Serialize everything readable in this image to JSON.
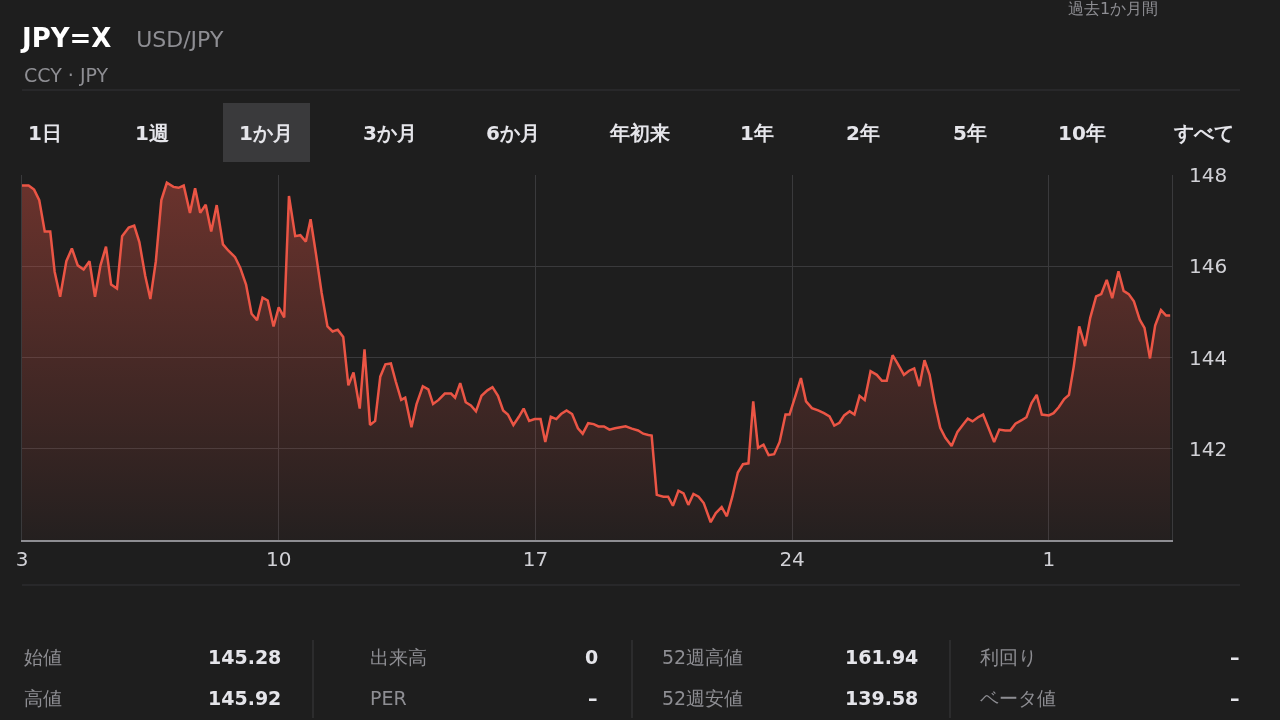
{
  "chart_data": {
    "type": "area",
    "title": "JPY=X",
    "subtitle": "USD/JPY",
    "annotations": [
      "CCY · JPY",
      "過去1か月間",
      "1日",
      "1週",
      "1か月",
      "3か月",
      "6か月",
      "年初来",
      "1年",
      "2年",
      "5年",
      "10年",
      "すべて",
      "始値",
      "145.28",
      "出来高",
      "0",
      "52週高値",
      "161.94",
      "利回り",
      "–",
      "高値",
      "145.92",
      "PER",
      "–",
      "52週安値",
      "139.58",
      "ベータ値",
      "–"
    ],
    "x": [
      "--04-03T00:00",
      "--04-03T04:19",
      "--04-03T07:55",
      "--04-03T11:17",
      "--04-03T14:53",
      "--04-03T18:29",
      "--04-03T21:22",
      "--04-04T00:58",
      "--04-04T05:02",
      "--04-04T08:38",
      "--04-04T12:29",
      "--04-04T16:19",
      "--04-04T20:10",
      "--04-04T23:46",
      "--04-05T03:22",
      "--04-05T06:58",
      "--04-05T10:19",
      "--04-05T14:10",
      "--04-05T17:31",
      "--04-05T21:50",
      "--04-06T01:26",
      "--04-06T04:48",
      "--04-06T08:38",
      "--04-06T12:00",
      "--04-06T15:36",
      "--04-06T19:12",
      "--04-06T22:48",
      "--04-07T03:07",
      "--04-07T06:29",
      "--04-07T09:50",
      "--04-07T13:55",
      "--04-07T17:17",
      "--04-07T20:38",
      "--04-08T00:14",
      "--04-08T03:50",
      "--04-08T07:26",
      "--04-08T11:31",
      "--04-08T15:07",
      "--04-08T19:26",
      "--04-08T22:48",
      "--04-09T02:38",
      "--04-09T06:14",
      "--04-09T09:50",
      "--04-09T13:26",
      "--04-09T16:48",
      "--04-09T20:38",
      "--04-10T00:00",
      "--04-10T03:36",
      "--04-10T06:43",
      "--04-10T10:48",
      "--04-10T14:10",
      "--04-10T17:46",
      "--04-10T20:53",
      "--04-11T00:29",
      "--04-11T04:05",
      "--04-11T07:55",
      "--04-11T11:17",
      "--04-11T14:38",
      "--04-11T18:14",
      "--04-11T21:36",
      "--04-12T00:58",
      "--04-12T05:02",
      "--04-12T08:10",
      "--04-12T11:46",
      "--04-12T15:07",
      "--04-12T18:29",
      "--04-12T21:50",
      "--04-13T01:26",
      "--04-13T04:34",
      "--04-13T08:10",
      "--04-13T10:48",
      "--04-13T14:53",
      "--04-13T18:14",
      "--04-13T22:19",
      "--04-14T01:55",
      "--04-14T05:02",
      "--04-14T08:38",
      "--04-14T12:43",
      "--04-14T16:48",
      "--04-14T19:26",
      "--04-14T22:48",
      "--04-15T02:24",
      "--04-15T05:46",
      "--04-15T09:07",
      "--04-15T12:43",
      "--04-15T16:34",
      "--04-15T19:55",
      "--04-15T23:31",
      "--04-16T02:53",
      "--04-16T06:00",
      "--04-16T09:36",
      "--04-16T13:12",
      "--04-16T16:19",
      "--04-16T19:55",
      "--04-16T23:31",
      "--04-17T03:22",
      "--04-17T06:29",
      "--04-17T10:05",
      "--04-17T13:41",
      "--04-17T16:48",
      "--04-17T20:24",
      "--04-18T00:00",
      "--04-18T03:50",
      "--04-18T06:58",
      "--04-18T10:34",
      "--04-18T14:10",
      "--04-18T17:17",
      "--04-18T20:53",
      "--04-19T00:29",
      "--04-19T04:05",
      "--04-19T07:41",
      "--04-19T11:02",
      "--04-19T15:07",
      "--04-19T19:12",
      "--04-19T22:34",
      "--04-20T01:55",
      "--04-20T04:05",
      "--04-20T07:26",
      "--04-20T11:46",
      "--04-20T14:53",
      "--04-20T18:00",
      "--04-20T21:36",
      "--04-21T00:58",
      "--04-21T04:05",
      "--04-21T07:26",
      "--04-21T10:48",
      "--04-21T14:10",
      "--04-21T18:43",
      "--04-21T22:05",
      "--04-22T01:55",
      "--04-22T05:17",
      "--04-22T08:53",
      "--04-22T12:29",
      "--04-22T15:50",
      "--04-22T19:26",
      "--04-22T22:34",
      "--04-23T01:41",
      "--04-23T05:17",
      "--04-23T08:38",
      "--04-23T12:14",
      "--04-23T15:50",
      "--04-23T19:41",
      "--04-23T22:19",
      "--04-24T02:24",
      "--04-24T05:46",
      "--04-24T09:07",
      "--04-24T12:58",
      "--04-24T17:02",
      "--04-24T20:53",
      "--04-25T00:29",
      "--04-25T03:36",
      "--04-25T06:58",
      "--04-25T10:05",
      "--04-25T13:41",
      "--04-25T16:48",
      "--04-25T20:10",
      "--04-25T23:31",
      "--04-26T03:22",
      "--04-26T07:26",
      "--04-26T10:48",
      "--04-26T13:55",
      "--04-26T17:46",
      "--04-26T21:22",
      "--04-27T01:12",
      "--04-27T04:34",
      "--04-27T07:55",
      "--04-27T11:17",
      "--04-27T14:38",
      "--04-27T18:00",
      "--04-27T21:22",
      "--04-28T00:58",
      "--04-28T04:19",
      "--04-28T08:24",
      "--04-28T12:14",
      "--04-28T16:19",
      "--04-28T18:58",
      "--04-28T22:05",
      "--04-29T01:41",
      "--04-29T05:02",
      "--04-29T08:38",
      "--04-29T12:14",
      "--04-29T15:36",
      "--04-29T19:26",
      "--04-29T22:48",
      "--04-30T02:10",
      "--04-30T06:00",
      "--04-30T09:22",
      "--04-30T12:43",
      "--04-30T16:05",
      "--04-30T19:26",
      "--05-01T00:00",
      "--05-01T03:07",
      "--05-01T06:29",
      "--05-01T10:05",
      "--05-01T13:12",
      "--05-01T16:19",
      "--05-01T19:55",
      "--05-01T23:46",
      "--05-02T03:07",
      "--05-02T06:58",
      "--05-02T10:19",
      "--05-02T13:55",
      "--05-02T17:31",
      "--05-02T21:36",
      "--05-03T00:58",
      "--05-03T04:19",
      "--05-03T07:41",
      "--05-03T11:31",
      "--05-03T14:38",
      "--05-03T18:14",
      "--05-03T21:36",
      "--05-04T01:26",
      "--05-04T04:48",
      "--05-04T07:26"
    ],
    "series": [
      {
        "color": "#eb5545",
        "values": [
          147.77,
          147.77,
          147.68,
          147.45,
          146.76,
          146.76,
          145.88,
          145.33,
          146.11,
          146.39,
          146.02,
          145.93,
          146.11,
          145.33,
          146.02,
          146.43,
          145.6,
          145.51,
          146.66,
          146.85,
          146.89,
          146.53,
          145.79,
          145.28,
          146.11,
          147.45,
          147.83,
          147.74,
          147.72,
          147.77,
          147.17,
          147.71,
          147.17,
          147.35,
          146.76,
          147.34,
          146.48,
          146.34,
          146.2,
          145.97,
          145.6,
          144.96,
          144.82,
          145.31,
          145.25,
          144.68,
          145.1,
          144.88,
          147.54,
          146.66,
          146.68,
          146.54,
          147.03,
          146.25,
          145.42,
          144.68,
          144.57,
          144.61,
          144.45,
          143.39,
          143.67,
          142.88,
          144.18,
          142.52,
          142.61,
          143.58,
          143.85,
          143.87,
          143.48,
          143.07,
          143.12,
          142.47,
          142.98,
          143.37,
          143.3,
          142.98,
          143.07,
          143.21,
          143.21,
          143.12,
          143.44,
          143.02,
          142.95,
          142.82,
          143.16,
          143.28,
          143.35,
          143.16,
          142.84,
          142.75,
          142.52,
          142.7,
          142.88,
          142.61,
          142.65,
          142.65,
          142.15,
          142.7,
          142.65,
          142.76,
          142.84,
          142.76,
          142.45,
          142.33,
          142.56,
          142.54,
          142.49,
          142.49,
          142.42,
          142.45,
          142.47,
          142.49,
          142.44,
          142.4,
          142.33,
          142.3,
          142.29,
          140.99,
          140.95,
          140.95,
          140.75,
          141.08,
          141.02,
          140.77,
          141.01,
          140.95,
          140.81,
          140.39,
          140.59,
          140.72,
          140.52,
          140.95,
          141.48,
          141.66,
          141.68,
          143.04,
          142.02,
          142.09,
          141.86,
          141.88,
          142.15,
          142.75,
          142.75,
          143.18,
          143.55,
          143.04,
          142.89,
          142.84,
          142.78,
          142.71,
          142.51,
          142.57,
          142.73,
          142.82,
          142.75,
          143.16,
          143.07,
          143.7,
          143.62,
          143.49,
          143.49,
          144.05,
          143.85,
          143.62,
          143.71,
          143.76,
          143.37,
          143.94,
          143.62,
          143.0,
          142.46,
          142.24,
          142.06,
          142.37,
          142.55,
          142.66,
          142.6,
          142.69,
          142.75,
          142.45,
          142.15,
          142.42,
          142.4,
          142.4,
          142.55,
          142.62,
          142.69,
          143.0,
          143.18,
          142.75,
          142.73,
          142.78,
          142.91,
          143.09,
          143.18,
          143.8,
          144.68,
          144.25,
          144.87,
          145.34,
          145.39,
          145.7,
          145.3,
          145.89,
          145.46,
          145.39,
          145.23,
          144.83,
          144.65,
          143.98,
          144.7,
          145.04,
          144.92,
          144.92
        ]
      }
    ],
    "xlim": [
      "--04-03",
      "--05-04T08:38"
    ],
    "xticks": [
      {
        "value": "--04-03",
        "label": "3"
      },
      {
        "value": "--04-10",
        "label": "10"
      },
      {
        "value": "--04-17",
        "label": "17"
      },
      {
        "value": "--04-24",
        "label": "24"
      },
      {
        "value": "--05-01",
        "label": "1"
      }
    ],
    "ylim": [
      140,
      148
    ],
    "yticks": [
      142,
      144,
      146,
      148
    ],
    "grid": true,
    "marker": "none",
    "line_style": "solid"
  }
}
